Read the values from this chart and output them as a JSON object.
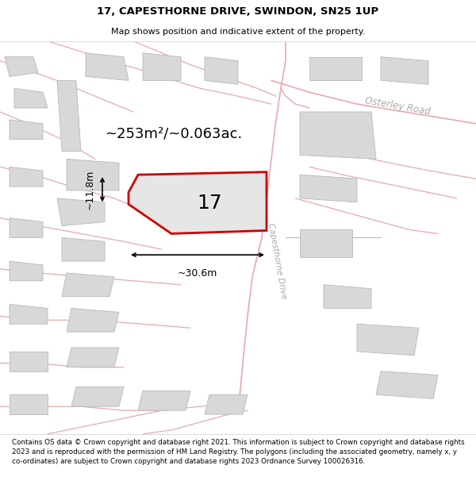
{
  "title_line1": "17, CAPESTHORNE DRIVE, SWINDON, SN25 1UP",
  "title_line2": "Map shows position and indicative extent of the property.",
  "area_label": "~253m²/~0.063ac.",
  "width_label": "~30.6m",
  "height_label": "~11.8m",
  "plot_number": "17",
  "road_label1": "Osterley Road",
  "road_label2": "Capesthorne Drive",
  "footer_text": "Contains OS data © Crown copyright and database right 2021. This information is subject to Crown copyright and database rights 2023 and is reproduced with the permission of HM Land Registry. The polygons (including the associated geometry, namely x, y co-ordinates) are subject to Crown copyright and database rights 2023 Ordnance Survey 100026316.",
  "bg_color": "#f8f8f8",
  "plot_fill": "#e8e8e8",
  "plot_outline": "#cc0000",
  "road_line_color": "#e8aaaa",
  "building_fill": "#d8d8d8",
  "building_edge": "#b8b8b8",
  "title_fontsize": 9.5,
  "subtitle_fontsize": 8,
  "footer_fontsize": 6.3
}
